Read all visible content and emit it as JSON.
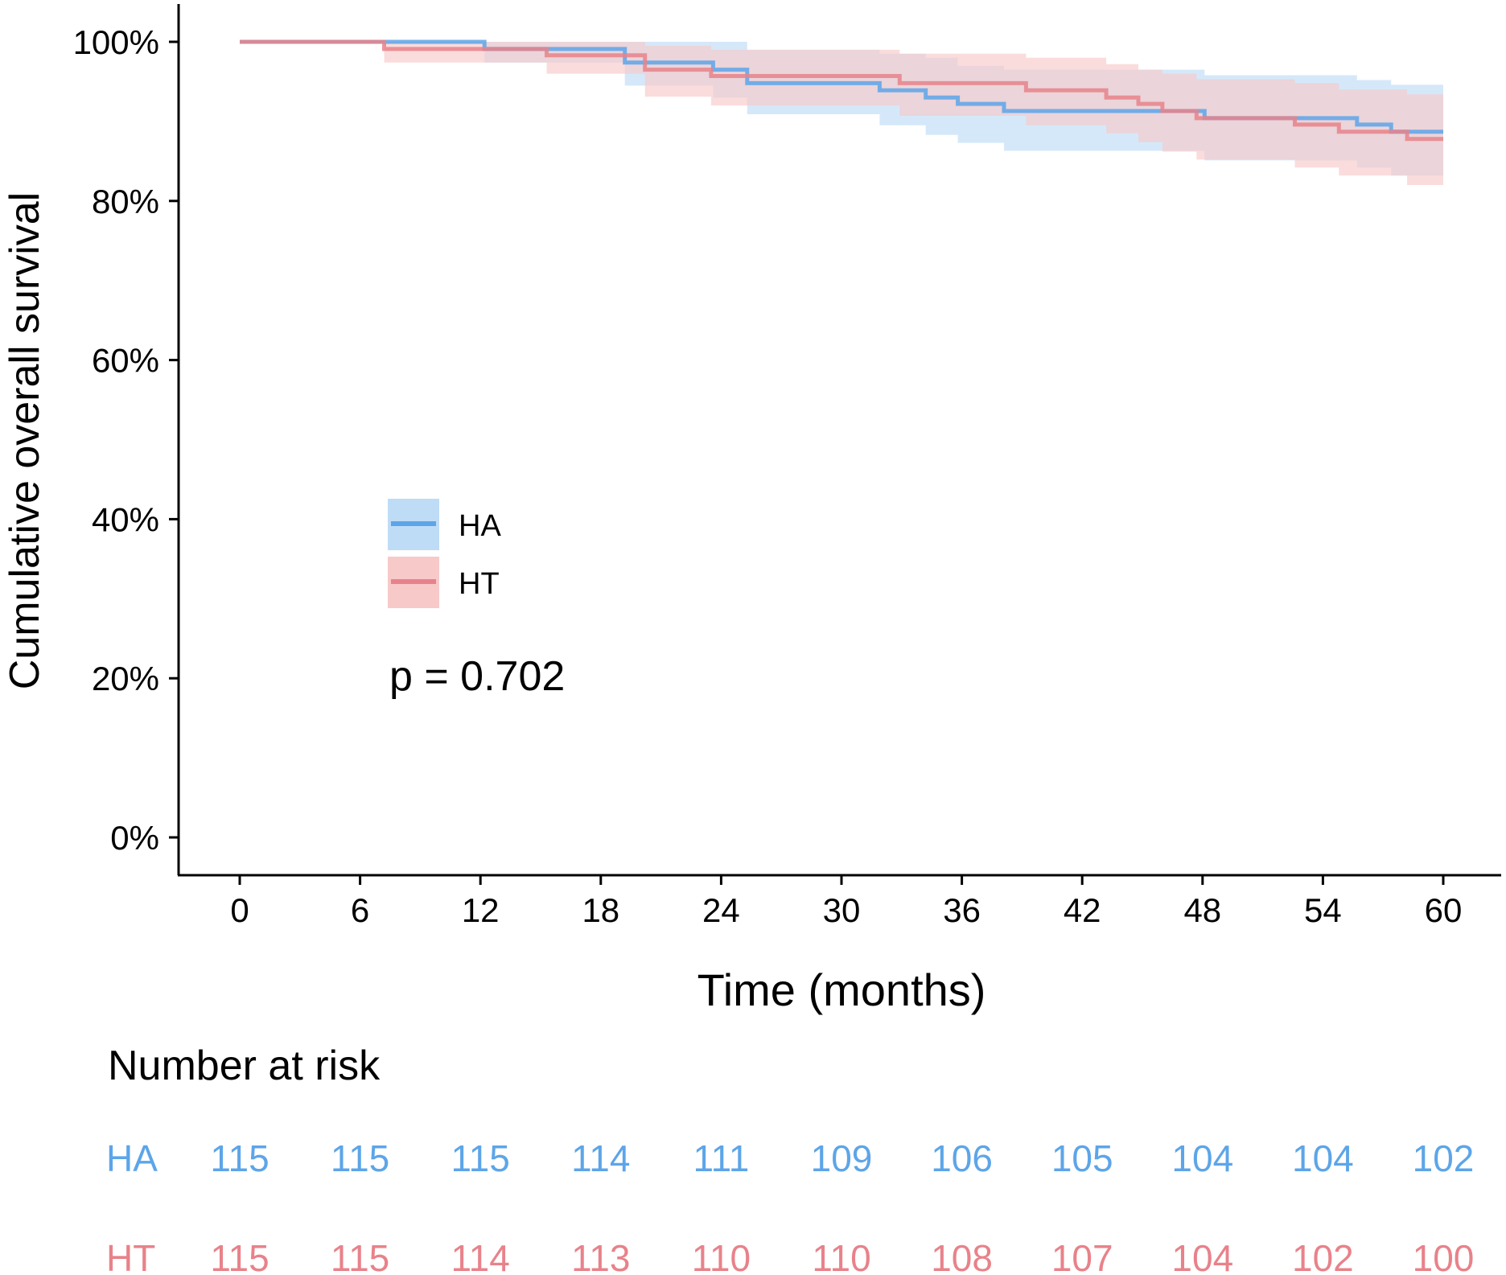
{
  "chart_data": {
    "type": "line",
    "subtype": "kaplan-meier",
    "title": "",
    "xlabel": "Time (months)",
    "ylabel": "Cumulative overall survival",
    "xlim": [
      0,
      60
    ],
    "ylim": [
      0,
      1
    ],
    "x_ticks": [
      0,
      6,
      12,
      18,
      24,
      30,
      36,
      42,
      48,
      54,
      60
    ],
    "x_tick_labels": [
      "0",
      "6",
      "12",
      "18",
      "24",
      "30",
      "36",
      "42",
      "48",
      "54",
      "60"
    ],
    "y_ticks": [
      0,
      0.2,
      0.4,
      0.6,
      0.8,
      1.0
    ],
    "y_tick_labels": [
      "0%",
      "20%",
      "40%",
      "60%",
      "80%",
      "100%"
    ],
    "grid": false,
    "legend": {
      "placement": "left-middle",
      "entries": [
        "HA",
        "HT"
      ]
    },
    "annotation": "p = 0.702",
    "series": [
      {
        "name": "HA",
        "color": "#5DA5E8",
        "fill": "#BFDCF6",
        "steps": [
          [
            0,
            1.0
          ],
          [
            12.2,
            0.991
          ],
          [
            19.2,
            0.974
          ],
          [
            23.6,
            0.965
          ],
          [
            25.3,
            0.948
          ],
          [
            31.9,
            0.939
          ],
          [
            34.2,
            0.93
          ],
          [
            35.8,
            0.922
          ],
          [
            38.1,
            0.913
          ],
          [
            48.1,
            0.904
          ],
          [
            52.8,
            0.904
          ],
          [
            55.7,
            0.896
          ],
          [
            57.4,
            0.887
          ],
          [
            60,
            0.887
          ]
        ],
        "upper": [
          [
            0,
            1.0
          ],
          [
            12.2,
            1.0
          ],
          [
            19.2,
            1.0
          ],
          [
            23.6,
            1.0
          ],
          [
            25.3,
            0.99
          ],
          [
            31.9,
            0.985
          ],
          [
            34.2,
            0.98
          ],
          [
            35.8,
            0.97
          ],
          [
            38.1,
            0.965
          ],
          [
            48.1,
            0.958
          ],
          [
            52.8,
            0.958
          ],
          [
            55.7,
            0.952
          ],
          [
            57.4,
            0.946
          ],
          [
            60,
            0.946
          ]
        ],
        "lower": [
          [
            0,
            1.0
          ],
          [
            12.2,
            0.974
          ],
          [
            19.2,
            0.945
          ],
          [
            23.6,
            0.93
          ],
          [
            25.3,
            0.909
          ],
          [
            31.9,
            0.895
          ],
          [
            34.2,
            0.883
          ],
          [
            35.8,
            0.873
          ],
          [
            38.1,
            0.863
          ],
          [
            48.1,
            0.851
          ],
          [
            52.8,
            0.851
          ],
          [
            55.7,
            0.842
          ],
          [
            57.4,
            0.832
          ],
          [
            60,
            0.832
          ]
        ]
      },
      {
        "name": "HT",
        "color": "#E8828A",
        "fill": "#F7C9C9",
        "steps": [
          [
            0,
            1.0
          ],
          [
            7.2,
            0.991
          ],
          [
            15.3,
            0.983
          ],
          [
            20.2,
            0.965
          ],
          [
            23.5,
            0.957
          ],
          [
            32.9,
            0.948
          ],
          [
            39.2,
            0.939
          ],
          [
            43.2,
            0.93
          ],
          [
            44.8,
            0.922
          ],
          [
            46.0,
            0.913
          ],
          [
            47.7,
            0.904
          ],
          [
            52.6,
            0.896
          ],
          [
            54.8,
            0.887
          ],
          [
            58.2,
            0.878
          ],
          [
            60,
            0.878
          ]
        ],
        "upper": [
          [
            0,
            1.0
          ],
          [
            7.2,
            1.0
          ],
          [
            15.3,
            1.0
          ],
          [
            20.2,
            0.995
          ],
          [
            23.5,
            0.99
          ],
          [
            32.9,
            0.985
          ],
          [
            39.2,
            0.98
          ],
          [
            43.2,
            0.972
          ],
          [
            44.8,
            0.965
          ],
          [
            46.0,
            0.96
          ],
          [
            47.7,
            0.953
          ],
          [
            52.6,
            0.948
          ],
          [
            54.8,
            0.94
          ],
          [
            58.2,
            0.934
          ],
          [
            60,
            0.934
          ]
        ],
        "lower": [
          [
            0,
            1.0
          ],
          [
            7.2,
            0.974
          ],
          [
            15.3,
            0.96
          ],
          [
            20.2,
            0.931
          ],
          [
            23.5,
            0.92
          ],
          [
            32.9,
            0.907
          ],
          [
            39.2,
            0.895
          ],
          [
            43.2,
            0.885
          ],
          [
            44.8,
            0.874
          ],
          [
            46.0,
            0.862
          ],
          [
            47.7,
            0.852
          ],
          [
            52.6,
            0.842
          ],
          [
            54.8,
            0.832
          ],
          [
            58.2,
            0.82
          ],
          [
            60,
            0.82
          ]
        ]
      }
    ],
    "risk_table": {
      "title": "Number at risk",
      "rows": [
        {
          "name": "HA",
          "color": "#5DA5E8",
          "values": [
            "115",
            "115",
            "115",
            "114",
            "111",
            "109",
            "106",
            "105",
            "104",
            "104",
            "102"
          ]
        },
        {
          "name": "HT",
          "color": "#E8828A",
          "values": [
            "115",
            "115",
            "114",
            "113",
            "110",
            "110",
            "108",
            "107",
            "104",
            "102",
            "100"
          ]
        }
      ]
    }
  }
}
